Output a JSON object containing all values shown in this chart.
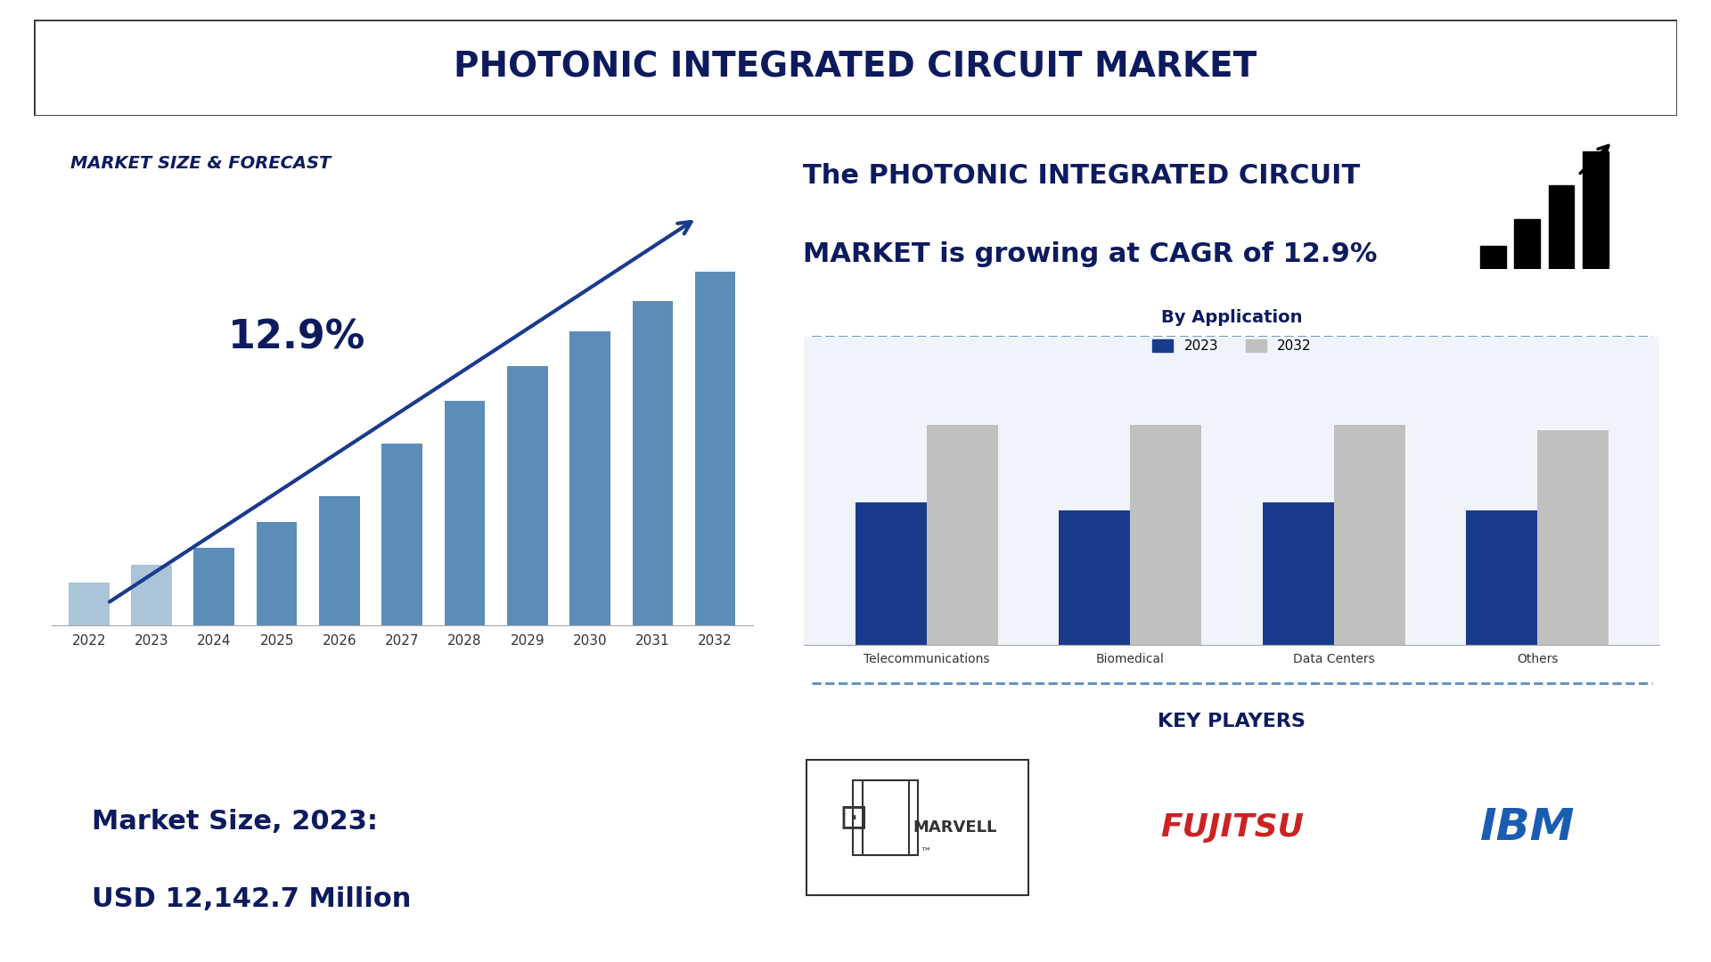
{
  "title": "PHOTONIC INTEGRATED CIRCUIT MARKET",
  "title_fontsize": 28,
  "title_color": "#0d1b5e",
  "background_color": "#ffffff",
  "left_panel": {
    "section_title": "MARKET SIZE & FORECAST",
    "cagr_label": "12.9%",
    "years": [
      2022,
      2023,
      2024,
      2025,
      2026,
      2027,
      2028,
      2029,
      2030,
      2031,
      2032
    ],
    "values": [
      10,
      14,
      18,
      24,
      30,
      42,
      52,
      60,
      68,
      75,
      82
    ],
    "bar_colors": [
      "#aac4d8",
      "#aac4d8",
      "#5b8db8",
      "#5b8db8",
      "#5b8db8",
      "#5b8db8",
      "#5b8db8",
      "#5b8db8",
      "#5b8db8",
      "#5b8db8",
      "#5b8db8"
    ],
    "arrow_color": "#1a3a8c",
    "market_size_text_line1": "Market Size, 2023:",
    "market_size_text_line2": "USD 12,142.7 Million",
    "market_size_color": "#0d1b5e"
  },
  "right_panel_top": {
    "text_line1": "The PHOTONIC INTEGRATED CIRCUIT",
    "text_line2": "MARKET is growing at CAGR of 12.9%",
    "text_color": "#0d1b5e",
    "text_fontsize": 22
  },
  "right_panel_bar": {
    "section_title": "By Application",
    "categories": [
      "Telecommunications",
      "Biomedical",
      "Data Centers",
      "Others"
    ],
    "values_2023": [
      55,
      52,
      55,
      52
    ],
    "values_2032": [
      85,
      85,
      85,
      83
    ],
    "color_2023": "#1a3a8c",
    "color_2032": "#c0c0c0",
    "legend_2023": "2023",
    "legend_2032": "2032"
  },
  "key_players": {
    "label": "KEY PLAYERS",
    "players": [
      "MARVELL",
      "FUJITSU",
      "IBM"
    ],
    "label_color": "#0d1b5e"
  }
}
